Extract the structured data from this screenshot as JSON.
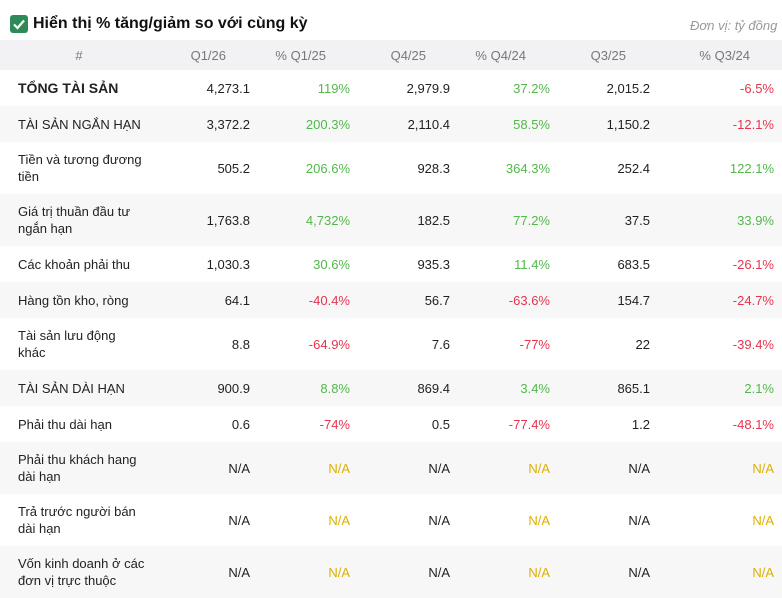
{
  "header": {
    "title": "Hiển thị % tăng/giảm so với cùng kỳ",
    "unit": "Đơn vị: tỷ đồng"
  },
  "colors": {
    "positive": "#52b84a",
    "negative": "#e5344f",
    "missing": "#dcb000"
  },
  "table": {
    "columns": [
      "#",
      "Q1/26",
      "% Q1/25",
      "Q4/25",
      "% Q4/24",
      "Q3/25",
      "% Q3/24"
    ],
    "rows": [
      [
        "TỔNG TÀI SẢN",
        "4,273.1",
        "119%",
        "2,979.9",
        "37.2%",
        "2,015.2",
        "-6.5%"
      ],
      [
        "TÀI SẢN NGẮN HẠN",
        "3,372.2",
        "200.3%",
        "2,110.4",
        "58.5%",
        "1,150.2",
        "-12.1%"
      ],
      [
        "Tiền và tương đương tiền",
        "505.2",
        "206.6%",
        "928.3",
        "364.3%",
        "252.4",
        "122.1%"
      ],
      [
        "Giá trị thuần đầu tư ngắn hạn",
        "1,763.8",
        "4,732%",
        "182.5",
        "77.2%",
        "37.5",
        "33.9%"
      ],
      [
        "Các khoản phải thu",
        "1,030.3",
        "30.6%",
        "935.3",
        "11.4%",
        "683.5",
        "-26.1%"
      ],
      [
        "Hàng tồn kho, ròng",
        "64.1",
        "-40.4%",
        "56.7",
        "-63.6%",
        "154.7",
        "-24.7%"
      ],
      [
        "Tài sản lưu động khác",
        "8.8",
        "-64.9%",
        "7.6",
        "-77%",
        "22",
        "-39.4%"
      ],
      [
        "TÀI SẢN DÀI HẠN",
        "900.9",
        "8.8%",
        "869.4",
        "3.4%",
        "865.1",
        "2.1%"
      ],
      [
        "Phải thu dài hạn",
        "0.6",
        "-74%",
        "0.5",
        "-77.4%",
        "1.2",
        "-48.1%"
      ],
      [
        "Phải thu khách hang dài hạn",
        "N/A",
        "N/A",
        "N/A",
        "N/A",
        "N/A",
        "N/A"
      ],
      [
        "Trả trước người bán dài hạn",
        "N/A",
        "N/A",
        "N/A",
        "N/A",
        "N/A",
        "N/A"
      ],
      [
        "Vốn kinh doanh ở các đơn vị trực thuộc",
        "N/A",
        "N/A",
        "N/A",
        "N/A",
        "N/A",
        "N/A"
      ]
    ]
  }
}
